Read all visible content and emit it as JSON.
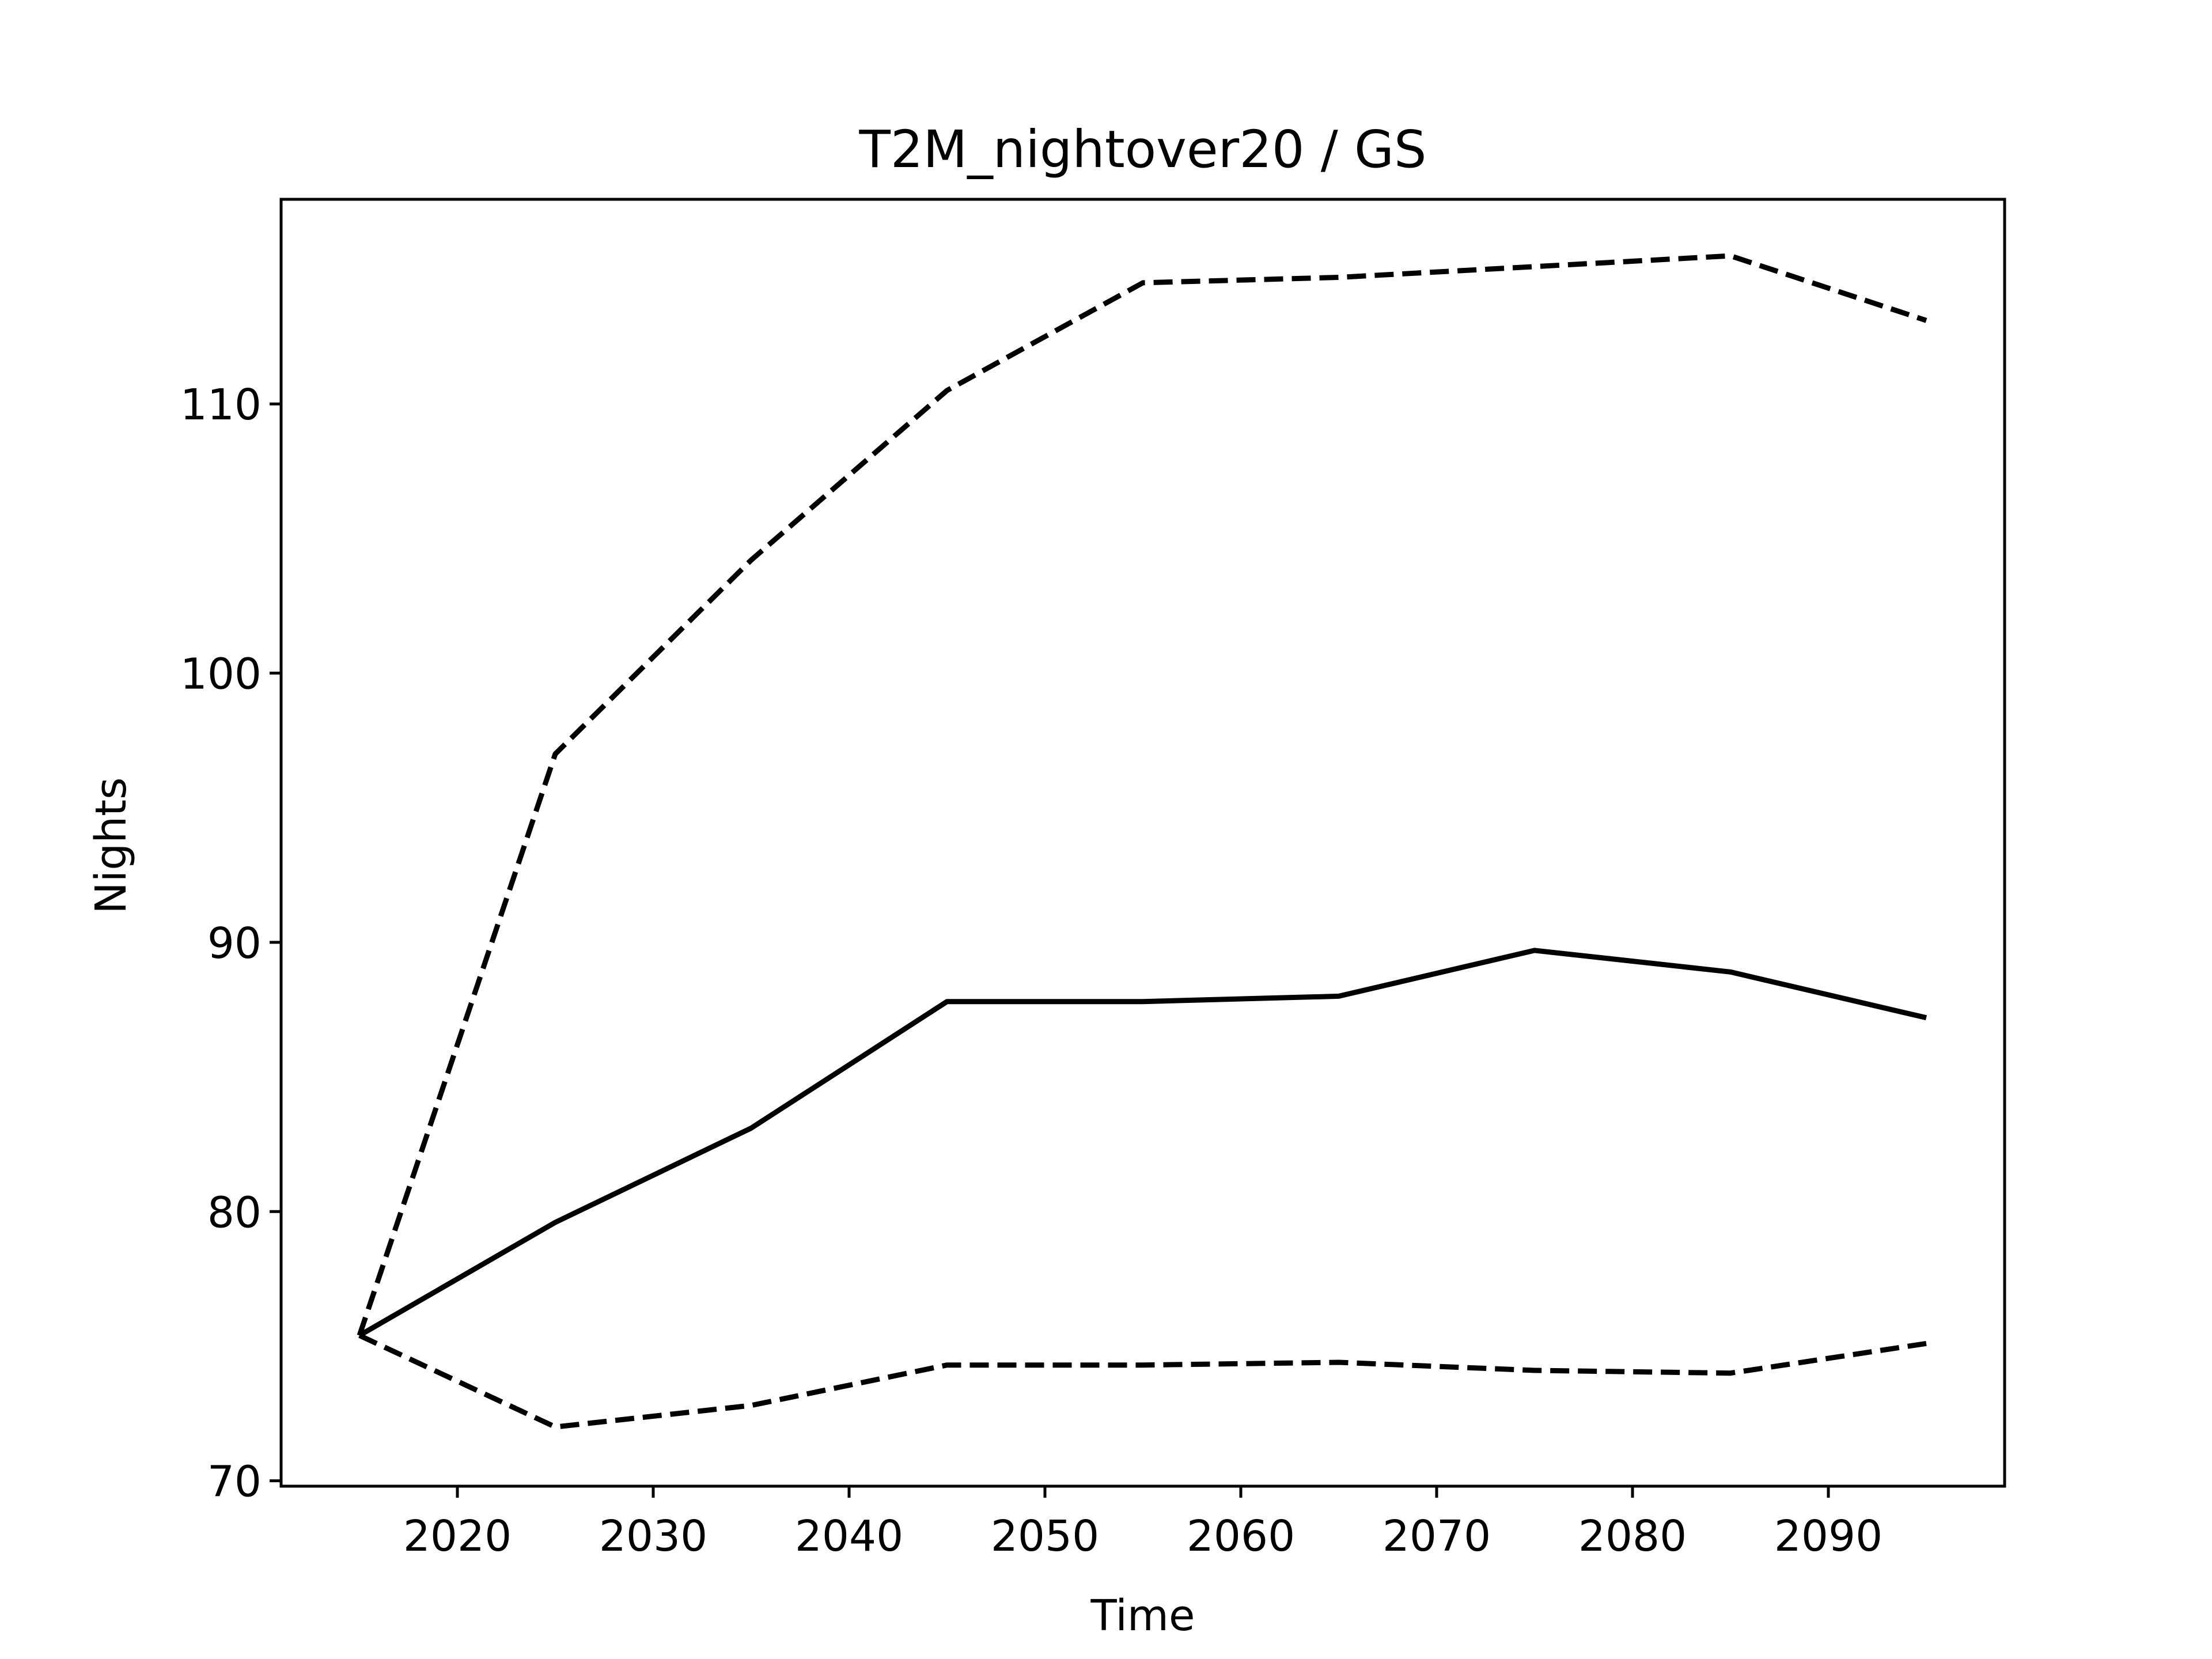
{
  "chart_data": {
    "type": "line",
    "title": "T2M_nightover20 / GS",
    "xlabel": "Time",
    "ylabel": "Nights",
    "x": [
      2015,
      2025,
      2035,
      2045,
      2055,
      2065,
      2075,
      2085,
      2095
    ],
    "series": [
      {
        "style": "solid",
        "values": [
          75.4,
          79.6,
          83.1,
          87.8,
          87.8,
          88.0,
          89.7,
          88.9,
          87.2
        ]
      },
      {
        "style": "dashed",
        "values": [
          75.4,
          97.0,
          104.2,
          110.5,
          114.5,
          114.7,
          115.1,
          115.5,
          113.1
        ]
      },
      {
        "style": "dashed",
        "values": [
          75.4,
          72.0,
          72.8,
          74.3,
          74.3,
          74.4,
          74.1,
          74.0,
          75.1
        ]
      }
    ],
    "xlim": [
      2011,
      2099
    ],
    "ylim": [
      69.8,
      117.6
    ],
    "xticks": [
      2020,
      2030,
      2040,
      2050,
      2060,
      2070,
      2080,
      2090
    ],
    "yticks": [
      70,
      80,
      90,
      100,
      110
    ],
    "grid": false,
    "legend": "none",
    "line_color": "#000000"
  }
}
